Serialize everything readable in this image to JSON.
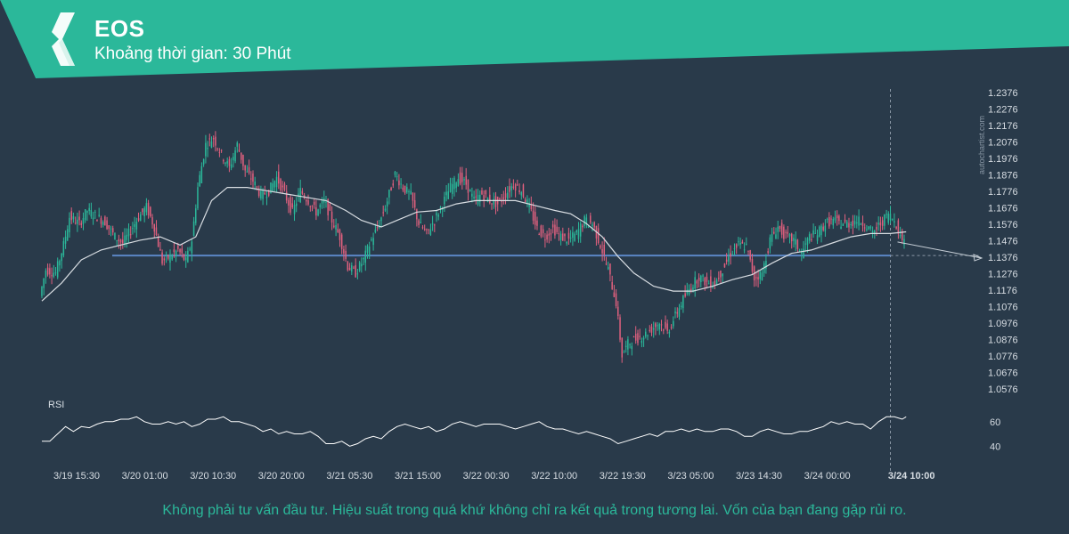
{
  "header": {
    "symbol": "EOS",
    "interval_label": "Khoảng thời gian:",
    "interval_value": "30 Phút",
    "logo_icon": "autochartist-logo-icon"
  },
  "watermark": "autochartist.com",
  "disclaimer": "Không phải tư vấn đầu tư. Hiệu suất trong quá khứ không chỉ ra kết quả trong tương lai. Vốn của bạn đang gặp rủi ro.",
  "colors": {
    "background": "#293a4a",
    "banner": "#2bb89a",
    "up_candle": "#2bb89a",
    "down_candle": "#e0607e",
    "level_line": "#5b86c5",
    "ma_line": "#d8dde2",
    "rsi_line": "#ffffff"
  },
  "chart_data": [
    {
      "type": "candlestick",
      "title": "EOS",
      "price_axis_ticks": [
        "1.2376",
        "1.2276",
        "1.2176",
        "1.2076",
        "1.1976",
        "1.1876",
        "1.1776",
        "1.1676",
        "1.1576",
        "1.1476",
        "1.1376",
        "1.1276",
        "1.1176",
        "1.1076",
        "1.0976",
        "1.0876",
        "1.0776",
        "1.0676",
        "1.0576"
      ],
      "ylim": [
        1.0576,
        1.2376
      ],
      "x_tick_labels": [
        "3/19 15:30",
        "3/20 01:00",
        "3/20 10:30",
        "3/20 20:00",
        "3/21 05:30",
        "3/21 15:00",
        "3/22 00:30",
        "3/22 10:00",
        "3/22 19:30",
        "3/23 05:00",
        "3/23 14:30",
        "3/24 00:00",
        "3/24 10:00"
      ],
      "highlighted_time": "3/24 10:00",
      "horizontal_level": 1.1386,
      "level_start": "3/20 01:00",
      "forecast_target": 1.1376,
      "grid": false,
      "price_path": [
        [
          0,
          1.114
        ],
        [
          3,
          1.13
        ],
        [
          8,
          1.128
        ],
        [
          12,
          1.145
        ],
        [
          15,
          1.162
        ],
        [
          20,
          1.158
        ],
        [
          24,
          1.166
        ],
        [
          28,
          1.163
        ],
        [
          33,
          1.159
        ],
        [
          38,
          1.15
        ],
        [
          42,
          1.146
        ],
        [
          46,
          1.154
        ],
        [
          50,
          1.162
        ],
        [
          54,
          1.168
        ],
        [
          58,
          1.156
        ],
        [
          62,
          1.135
        ],
        [
          66,
          1.138
        ],
        [
          70,
          1.142
        ],
        [
          74,
          1.135
        ],
        [
          77,
          1.148
        ],
        [
          80,
          1.18
        ],
        [
          84,
          1.206
        ],
        [
          88,
          1.21
        ],
        [
          92,
          1.2
        ],
        [
          96,
          1.192
        ],
        [
          100,
          1.206
        ],
        [
          104,
          1.19
        ],
        [
          108,
          1.184
        ],
        [
          112,
          1.175
        ],
        [
          116,
          1.178
        ],
        [
          120,
          1.186
        ],
        [
          124,
          1.176
        ],
        [
          128,
          1.165
        ],
        [
          132,
          1.178
        ],
        [
          136,
          1.172
        ],
        [
          140,
          1.165
        ],
        [
          144,
          1.172
        ],
        [
          148,
          1.16
        ],
        [
          152,
          1.15
        ],
        [
          156,
          1.132
        ],
        [
          160,
          1.128
        ],
        [
          164,
          1.136
        ],
        [
          168,
          1.148
        ],
        [
          172,
          1.158
        ],
        [
          176,
          1.172
        ],
        [
          180,
          1.188
        ],
        [
          184,
          1.18
        ],
        [
          188,
          1.175
        ],
        [
          192,
          1.158
        ],
        [
          196,
          1.152
        ],
        [
          200,
          1.16
        ],
        [
          204,
          1.17
        ],
        [
          208,
          1.18
        ],
        [
          212,
          1.186
        ],
        [
          216,
          1.182
        ],
        [
          220,
          1.172
        ],
        [
          224,
          1.176
        ],
        [
          228,
          1.172
        ],
        [
          232,
          1.17
        ],
        [
          236,
          1.176
        ],
        [
          240,
          1.182
        ],
        [
          244,
          1.178
        ],
        [
          248,
          1.168
        ],
        [
          252,
          1.155
        ],
        [
          256,
          1.15
        ],
        [
          260,
          1.155
        ],
        [
          264,
          1.15
        ],
        [
          268,
          1.148
        ],
        [
          272,
          1.152
        ],
        [
          276,
          1.16
        ],
        [
          280,
          1.158
        ],
        [
          284,
          1.145
        ],
        [
          288,
          1.13
        ],
        [
          292,
          1.11
        ],
        [
          295,
          1.078
        ],
        [
          298,
          1.085
        ],
        [
          302,
          1.088
        ],
        [
          306,
          1.09
        ],
        [
          310,
          1.094
        ],
        [
          314,
          1.098
        ],
        [
          318,
          1.092
        ],
        [
          322,
          1.102
        ],
        [
          326,
          1.112
        ],
        [
          330,
          1.12
        ],
        [
          334,
          1.126
        ],
        [
          338,
          1.122
        ],
        [
          342,
          1.122
        ],
        [
          346,
          1.13
        ],
        [
          350,
          1.14
        ],
        [
          354,
          1.145
        ],
        [
          358,
          1.144
        ],
        [
          362,
          1.125
        ],
        [
          366,
          1.128
        ],
        [
          370,
          1.148
        ],
        [
          374,
          1.156
        ],
        [
          378,
          1.15
        ],
        [
          382,
          1.148
        ],
        [
          386,
          1.14
        ],
        [
          390,
          1.15
        ],
        [
          394,
          1.152
        ],
        [
          398,
          1.158
        ],
        [
          402,
          1.16
        ],
        [
          406,
          1.158
        ],
        [
          410,
          1.158
        ],
        [
          414,
          1.16
        ],
        [
          418,
          1.158
        ],
        [
          422,
          1.152
        ],
        [
          426,
          1.158
        ],
        [
          430,
          1.164
        ],
        [
          434,
          1.158
        ],
        [
          436,
          1.15
        ],
        [
          438,
          1.148
        ]
      ],
      "ma_path": [
        [
          0,
          1.111
        ],
        [
          10,
          1.122
        ],
        [
          20,
          1.136
        ],
        [
          30,
          1.142
        ],
        [
          40,
          1.145
        ],
        [
          50,
          1.148
        ],
        [
          60,
          1.15
        ],
        [
          70,
          1.145
        ],
        [
          78,
          1.15
        ],
        [
          86,
          1.172
        ],
        [
          94,
          1.18
        ],
        [
          104,
          1.18
        ],
        [
          114,
          1.178
        ],
        [
          124,
          1.176
        ],
        [
          134,
          1.174
        ],
        [
          144,
          1.172
        ],
        [
          154,
          1.166
        ],
        [
          162,
          1.16
        ],
        [
          172,
          1.156
        ],
        [
          180,
          1.16
        ],
        [
          190,
          1.165
        ],
        [
          200,
          1.166
        ],
        [
          210,
          1.17
        ],
        [
          220,
          1.172
        ],
        [
          230,
          1.172
        ],
        [
          240,
          1.172
        ],
        [
          250,
          1.169
        ],
        [
          260,
          1.166
        ],
        [
          268,
          1.164
        ],
        [
          276,
          1.158
        ],
        [
          284,
          1.15
        ],
        [
          292,
          1.138
        ],
        [
          300,
          1.128
        ],
        [
          310,
          1.12
        ],
        [
          320,
          1.117
        ],
        [
          330,
          1.117
        ],
        [
          340,
          1.12
        ],
        [
          350,
          1.124
        ],
        [
          360,
          1.127
        ],
        [
          370,
          1.134
        ],
        [
          380,
          1.14
        ],
        [
          390,
          1.142
        ],
        [
          400,
          1.146
        ],
        [
          410,
          1.15
        ],
        [
          420,
          1.152
        ],
        [
          430,
          1.152
        ],
        [
          438,
          1.153
        ]
      ],
      "rsi": {
        "label": "RSI",
        "ticks": [
          60,
          40
        ],
        "ylim": [
          30,
          70
        ],
        "path": [
          [
            0,
            44
          ],
          [
            4,
            44
          ],
          [
            8,
            50
          ],
          [
            12,
            56
          ],
          [
            16,
            52
          ],
          [
            20,
            56
          ],
          [
            24,
            55
          ],
          [
            28,
            58
          ],
          [
            32,
            60
          ],
          [
            36,
            60
          ],
          [
            40,
            62
          ],
          [
            44,
            62
          ],
          [
            48,
            64
          ],
          [
            52,
            60
          ],
          [
            56,
            58
          ],
          [
            60,
            58
          ],
          [
            64,
            60
          ],
          [
            68,
            58
          ],
          [
            72,
            60
          ],
          [
            76,
            56
          ],
          [
            80,
            58
          ],
          [
            84,
            62
          ],
          [
            88,
            62
          ],
          [
            92,
            64
          ],
          [
            96,
            60
          ],
          [
            100,
            60
          ],
          [
            104,
            58
          ],
          [
            108,
            56
          ],
          [
            112,
            52
          ],
          [
            116,
            54
          ],
          [
            120,
            50
          ],
          [
            124,
            52
          ],
          [
            128,
            50
          ],
          [
            132,
            50
          ],
          [
            136,
            52
          ],
          [
            140,
            48
          ],
          [
            144,
            42
          ],
          [
            148,
            42
          ],
          [
            152,
            44
          ],
          [
            156,
            40
          ],
          [
            160,
            42
          ],
          [
            164,
            46
          ],
          [
            168,
            48
          ],
          [
            172,
            46
          ],
          [
            176,
            52
          ],
          [
            180,
            56
          ],
          [
            184,
            58
          ],
          [
            188,
            56
          ],
          [
            192,
            54
          ],
          [
            196,
            56
          ],
          [
            200,
            52
          ],
          [
            204,
            54
          ],
          [
            208,
            58
          ],
          [
            212,
            60
          ],
          [
            216,
            58
          ],
          [
            220,
            56
          ],
          [
            224,
            58
          ],
          [
            228,
            58
          ],
          [
            232,
            58
          ],
          [
            236,
            56
          ],
          [
            240,
            54
          ],
          [
            244,
            56
          ],
          [
            248,
            58
          ],
          [
            252,
            60
          ],
          [
            256,
            56
          ],
          [
            260,
            54
          ],
          [
            264,
            54
          ],
          [
            268,
            52
          ],
          [
            272,
            50
          ],
          [
            276,
            52
          ],
          [
            280,
            50
          ],
          [
            284,
            48
          ],
          [
            288,
            46
          ],
          [
            292,
            42
          ],
          [
            296,
            44
          ],
          [
            300,
            46
          ],
          [
            304,
            48
          ],
          [
            308,
            50
          ],
          [
            312,
            48
          ],
          [
            316,
            52
          ],
          [
            320,
            52
          ],
          [
            324,
            54
          ],
          [
            328,
            52
          ],
          [
            332,
            54
          ],
          [
            336,
            52
          ],
          [
            340,
            52
          ],
          [
            344,
            54
          ],
          [
            348,
            54
          ],
          [
            352,
            52
          ],
          [
            356,
            48
          ],
          [
            360,
            48
          ],
          [
            364,
            52
          ],
          [
            368,
            54
          ],
          [
            372,
            52
          ],
          [
            376,
            50
          ],
          [
            380,
            50
          ],
          [
            384,
            52
          ],
          [
            388,
            52
          ],
          [
            392,
            54
          ],
          [
            396,
            56
          ],
          [
            400,
            60
          ],
          [
            404,
            58
          ],
          [
            408,
            60
          ],
          [
            412,
            58
          ],
          [
            416,
            58
          ],
          [
            420,
            54
          ],
          [
            424,
            60
          ],
          [
            428,
            64
          ],
          [
            432,
            64
          ],
          [
            436,
            62
          ],
          [
            438,
            64
          ]
        ]
      }
    }
  ]
}
